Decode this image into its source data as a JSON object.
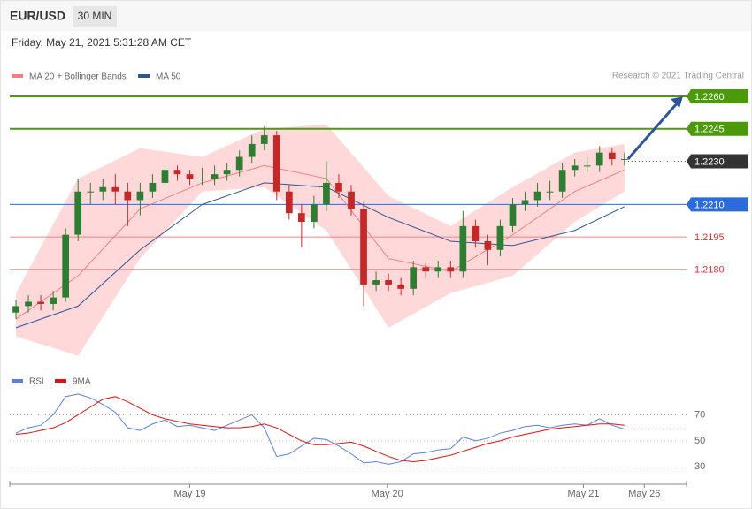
{
  "header": {
    "symbol": "EUR/USD",
    "interval": "30 MIN",
    "timestamp": "Friday, May 21, 2021 5:31:28 AM CET",
    "copyright": "Research © 2021 Trading Central"
  },
  "chart_data": [
    {
      "type": "candlestick",
      "legend": [
        {
          "name": "MA 20 + Bollinger Bands",
          "color": "#f08080"
        },
        {
          "name": "MA 50",
          "color": "#2f5597"
        }
      ],
      "up_color": "#2e7d32",
      "down_color": "#c62828",
      "open": [
        1.216,
        1.2163,
        1.2165,
        1.2164,
        1.2167,
        1.2196,
        1.2216,
        1.2216,
        1.2218,
        1.2216,
        1.2212,
        1.2216,
        1.222,
        1.2226,
        1.2224,
        1.2222,
        1.2222,
        1.2224,
        1.2226,
        1.2232,
        1.2238,
        1.2242,
        1.2216,
        1.2206,
        1.2202,
        1.221,
        1.222,
        1.2216,
        1.2208,
        1.2173,
        1.2175,
        1.2173,
        1.2171,
        1.2181,
        1.2179,
        1.2181,
        1.2179,
        1.22,
        1.2193,
        1.2189,
        1.22,
        1.221,
        1.2212,
        1.2216,
        1.2216,
        1.2226,
        1.2228,
        1.2228,
        1.2234,
        1.2231
      ],
      "high": [
        1.2166,
        1.2168,
        1.2168,
        1.217,
        1.2199,
        1.2222,
        1.222,
        1.2222,
        1.2224,
        1.222,
        1.222,
        1.2224,
        1.2229,
        1.2228,
        1.2226,
        1.2227,
        1.2228,
        1.2229,
        1.2235,
        1.2242,
        1.2246,
        1.2244,
        1.2219,
        1.221,
        1.2214,
        1.223,
        1.2224,
        1.2219,
        1.2211,
        1.2179,
        1.2178,
        1.2176,
        1.2184,
        1.2183,
        1.2184,
        1.2184,
        1.2207,
        1.2203,
        1.2196,
        1.2203,
        1.2213,
        1.2216,
        1.222,
        1.2221,
        1.2229,
        1.2231,
        1.2232,
        1.2237,
        1.2236,
        1.2234
      ],
      "low": [
        1.2157,
        1.216,
        1.2161,
        1.2161,
        1.2165,
        1.2193,
        1.221,
        1.2212,
        1.221,
        1.22,
        1.2205,
        1.2213,
        1.2218,
        1.2221,
        1.2219,
        1.2219,
        1.2219,
        1.2221,
        1.2223,
        1.2229,
        1.2235,
        1.2212,
        1.2203,
        1.219,
        1.2199,
        1.2207,
        1.2213,
        1.2205,
        1.2163,
        1.217,
        1.217,
        1.2168,
        1.2168,
        1.2176,
        1.2176,
        1.2176,
        1.2176,
        1.219,
        1.2182,
        1.2186,
        1.2197,
        1.2207,
        1.2209,
        1.2212,
        1.2213,
        1.2223,
        1.2225,
        1.2225,
        1.2228,
        1.2228
      ],
      "close": [
        1.2163,
        1.2165,
        1.2164,
        1.2167,
        1.2196,
        1.2216,
        1.2216,
        1.2218,
        1.2216,
        1.2212,
        1.2216,
        1.222,
        1.2226,
        1.2224,
        1.2222,
        1.2222,
        1.2224,
        1.2226,
        1.2232,
        1.2238,
        1.2242,
        1.2216,
        1.2206,
        1.2202,
        1.221,
        1.222,
        1.2216,
        1.2208,
        1.2173,
        1.2175,
        1.2173,
        1.2171,
        1.2181,
        1.2179,
        1.2181,
        1.2179,
        1.22,
        1.2193,
        1.2189,
        1.22,
        1.221,
        1.2212,
        1.2216,
        1.2216,
        1.2226,
        1.2228,
        1.2228,
        1.2234,
        1.2231,
        1.2231
      ],
      "overlay_x": [
        0,
        5,
        10,
        15,
        20,
        25,
        30,
        35,
        40,
        45,
        49
      ],
      "band_upper": [
        1.2169,
        1.2222,
        1.2236,
        1.2232,
        1.2245,
        1.2247,
        1.2214,
        1.22,
        1.2218,
        1.2234,
        1.2238
      ],
      "band_lower": [
        1.2149,
        1.214,
        1.2185,
        1.2216,
        1.2218,
        1.2198,
        1.2153,
        1.2169,
        1.2177,
        1.2202,
        1.2216
      ],
      "band_color": "#ffd9d9",
      "ma20": [
        1.2157,
        1.2177,
        1.2208,
        1.222,
        1.2228,
        1.2222,
        1.2185,
        1.2179,
        1.2196,
        1.2216,
        1.2226
      ],
      "ma50": [
        1.2153,
        1.2163,
        1.2189,
        1.221,
        1.222,
        1.2218,
        1.2204,
        1.2193,
        1.2191,
        1.2198,
        1.2209
      ],
      "levels": [
        {
          "value": 1.226,
          "label": "1.2260",
          "color": "#4c9a0b",
          "boxed": true,
          "dotted": false,
          "target": true
        },
        {
          "value": 1.2245,
          "label": "1.2245",
          "color": "#4c9a0b",
          "boxed": true,
          "dotted": false,
          "target": false
        },
        {
          "value": 1.223,
          "label": "1.2230",
          "color": "#333333",
          "boxed": true,
          "dotted": true,
          "target": false
        },
        {
          "value": 1.221,
          "label": "1.2210",
          "color": "#2b6bdc",
          "boxed": true,
          "dotted": false,
          "target": false
        },
        {
          "value": 1.2195,
          "label": "1.2195",
          "color": "#f08080",
          "boxed": false,
          "dotted": false,
          "target": false
        },
        {
          "value": 1.218,
          "label": "1.2180",
          "color": "#f08080",
          "boxed": false,
          "dotted": false,
          "target": false
        }
      ],
      "ylim": [
        1.2137,
        1.2287
      ],
      "xlim": [
        -0.5,
        54
      ]
    },
    {
      "type": "line",
      "series": [
        {
          "name": "RSI",
          "color": "#5b7fdc",
          "values": [
            56,
            60,
            62,
            70,
            84,
            86,
            83,
            78,
            72,
            60,
            58,
            63,
            66,
            61,
            62,
            60,
            58,
            62,
            66,
            70,
            60,
            38,
            40,
            46,
            52,
            51,
            46,
            40,
            33,
            34,
            32,
            34,
            40,
            41,
            43,
            44,
            53,
            50,
            52,
            56,
            58,
            61,
            62,
            60,
            62,
            63,
            62,
            67,
            62,
            59
          ]
        },
        {
          "name": "9MA",
          "color": "#e01010",
          "values": [
            55,
            56,
            58,
            60,
            64,
            70,
            76,
            82,
            84,
            80,
            75,
            70,
            67,
            65,
            63,
            62,
            61,
            60,
            60,
            61,
            63,
            60,
            55,
            50,
            47,
            47,
            48,
            49,
            46,
            42,
            38,
            35,
            34,
            35,
            37,
            39,
            42,
            45,
            48,
            50,
            53,
            55,
            57,
            59,
            60,
            61,
            62,
            63,
            63,
            62
          ]
        }
      ],
      "ylim": [
        18,
        90
      ],
      "yticks": [
        30,
        50,
        70
      ],
      "xlim": [
        -0.5,
        54
      ],
      "xticks": [
        {
          "value": 14,
          "label": "May 19"
        },
        {
          "value": 29.9,
          "label": "May 20"
        },
        {
          "value": 45.7,
          "label": "May 21"
        },
        {
          "value": 50.6,
          "label": "May 26"
        }
      ]
    }
  ]
}
